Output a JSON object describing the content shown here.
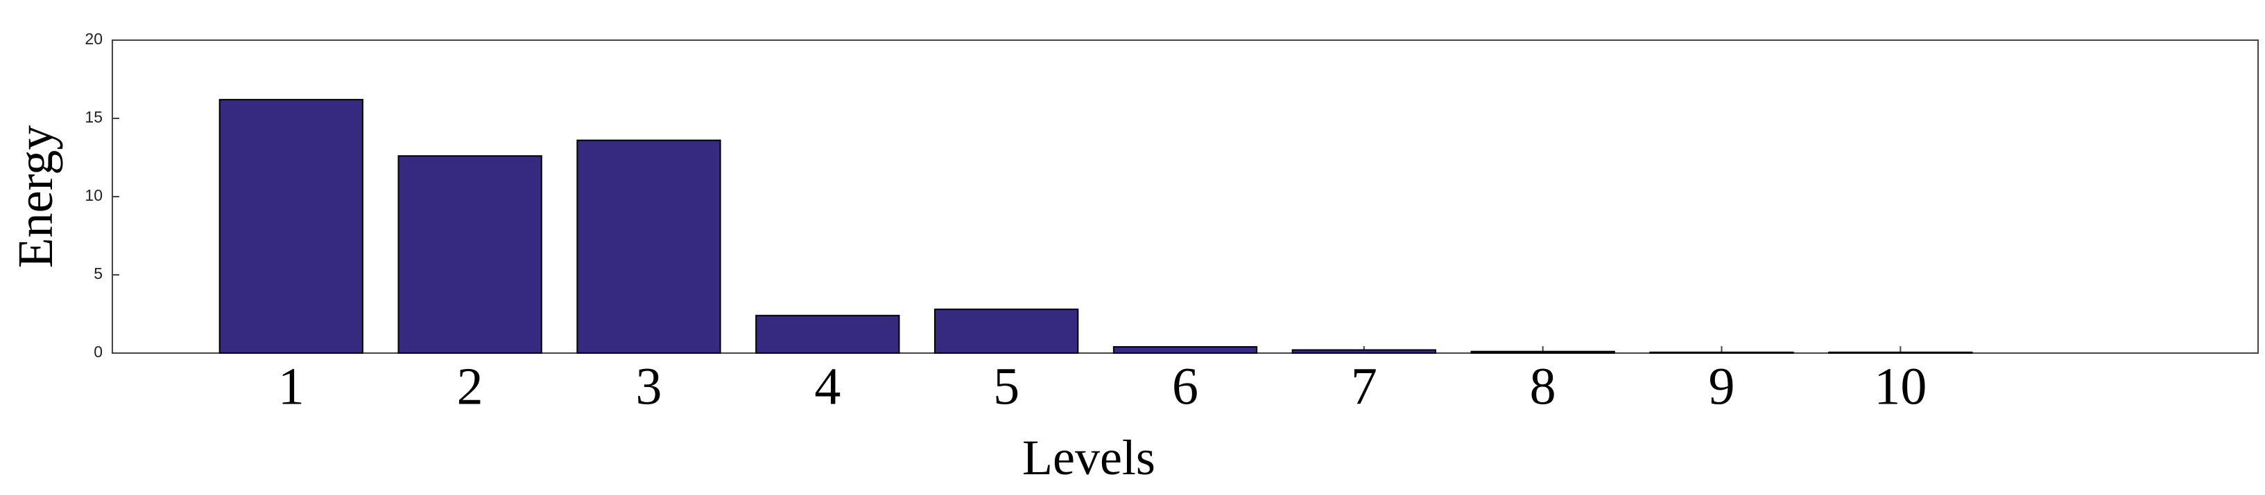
{
  "chart_data": {
    "type": "bar",
    "x": [
      1,
      2,
      3,
      4,
      5,
      6,
      7,
      8,
      9,
      10
    ],
    "values": [
      16.2,
      12.6,
      13.6,
      2.4,
      2.8,
      0.4,
      0.2,
      0.1,
      0.05,
      0.05
    ],
    "color": "#352a80",
    "xlabel": "Levels",
    "ylabel": "Energy",
    "xlim": [
      0,
      12
    ],
    "xticks": [
      1,
      2,
      3,
      4,
      5,
      6,
      7,
      8,
      9,
      10
    ],
    "ylim": [
      0,
      20
    ],
    "yticks": [
      0,
      5,
      10,
      15,
      20
    ]
  }
}
